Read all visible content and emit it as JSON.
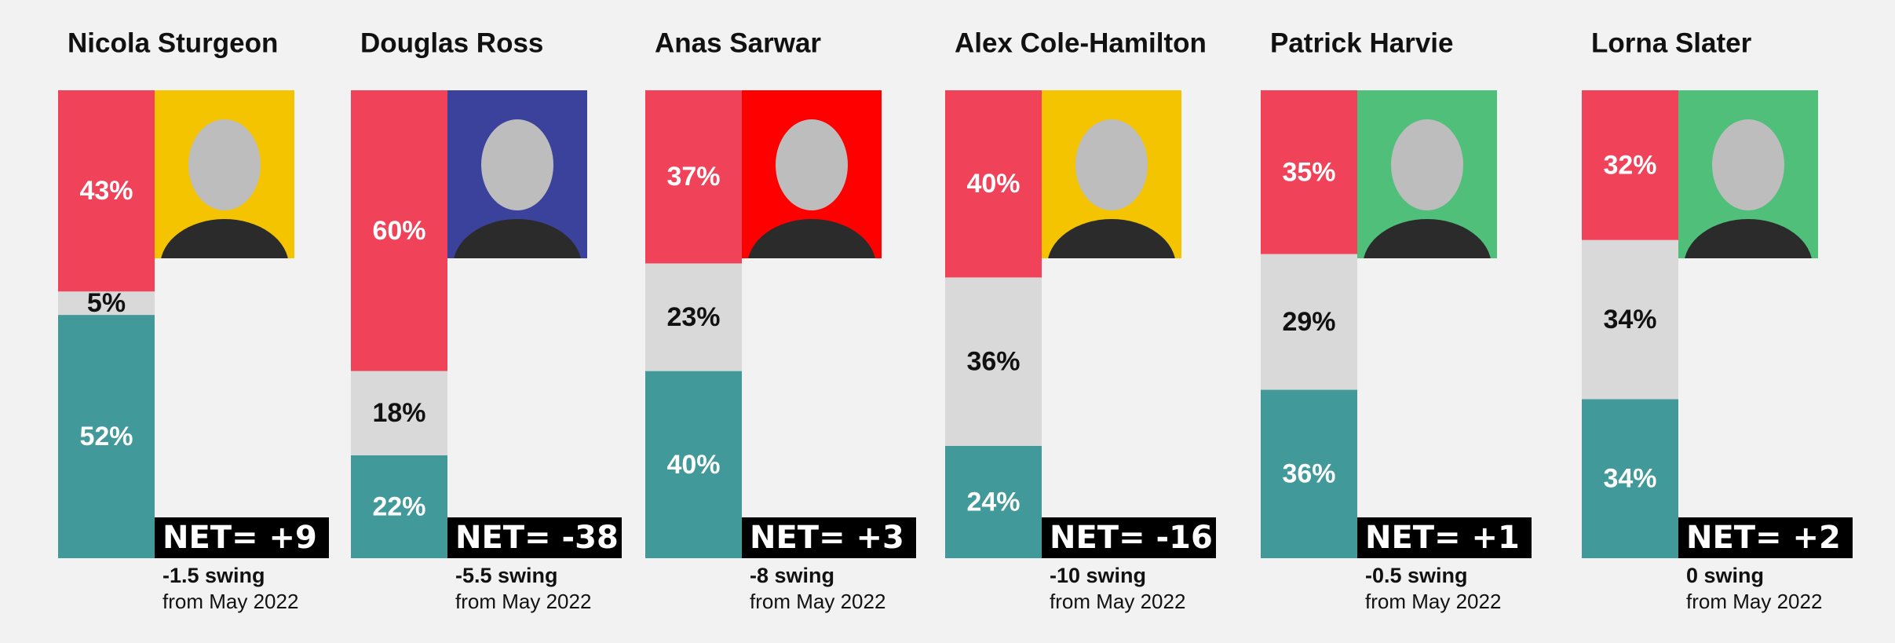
{
  "chart_data": [
    {
      "type": "bar",
      "stacked": true,
      "title": "Nicola Sturgeon",
      "categories": [
        null
      ],
      "series": [
        {
          "color": "#42999a",
          "values": [
            52
          ],
          "value_labels": [
            "52%"
          ]
        },
        {
          "color": "#d9d9d9",
          "values": [
            5
          ],
          "value_labels": [
            "5%"
          ]
        },
        {
          "color": "#f0435a",
          "values": [
            43
          ],
          "value_labels": [
            "43%"
          ]
        }
      ],
      "net": "NET= +9",
      "swing": "-1.5 swing",
      "note": "from May 2022"
    },
    {
      "type": "bar",
      "stacked": true,
      "title": "Douglas Ross",
      "categories": [
        null
      ],
      "series": [
        {
          "color": "#42999a",
          "values": [
            22
          ],
          "value_labels": [
            "22%"
          ]
        },
        {
          "color": "#d9d9d9",
          "values": [
            18
          ],
          "value_labels": [
            "18%"
          ]
        },
        {
          "color": "#f0435a",
          "values": [
            60
          ],
          "value_labels": [
            "60%"
          ]
        }
      ],
      "net": "NET= -38",
      "swing": "-5.5 swing",
      "note": "from May 2022"
    },
    {
      "type": "bar",
      "stacked": true,
      "title": "Anas Sarwar",
      "categories": [
        null
      ],
      "series": [
        {
          "color": "#42999a",
          "values": [
            40
          ],
          "value_labels": [
            "40%"
          ]
        },
        {
          "color": "#d9d9d9",
          "values": [
            23
          ],
          "value_labels": [
            "23%"
          ]
        },
        {
          "color": "#f0435a",
          "values": [
            37
          ],
          "value_labels": [
            "37%"
          ]
        }
      ],
      "net": "NET= +3",
      "swing": "-8 swing",
      "note": "from May 2022"
    },
    {
      "type": "bar",
      "stacked": true,
      "title": "Alex Cole-Hamilton",
      "categories": [
        null
      ],
      "series": [
        {
          "color": "#42999a",
          "values": [
            24
          ],
          "value_labels": [
            "24%"
          ]
        },
        {
          "color": "#d9d9d9",
          "values": [
            36
          ],
          "value_labels": [
            "36%"
          ]
        },
        {
          "color": "#f0435a",
          "values": [
            40
          ],
          "value_labels": [
            "40%"
          ]
        }
      ],
      "net": "NET= -16",
      "swing": "-10 swing",
      "note": "from May 2022"
    },
    {
      "type": "bar",
      "stacked": true,
      "title": "Patrick Harvie",
      "categories": [
        null
      ],
      "series": [
        {
          "color": "#42999a",
          "values": [
            36
          ],
          "value_labels": [
            "36%"
          ]
        },
        {
          "color": "#d9d9d9",
          "values": [
            29
          ],
          "value_labels": [
            "29%"
          ]
        },
        {
          "color": "#f0435a",
          "values": [
            35
          ],
          "value_labels": [
            "35%"
          ]
        }
      ],
      "net": "NET= +1",
      "swing": "-0.5 swing",
      "note": "from May 2022"
    },
    {
      "type": "bar",
      "stacked": true,
      "title": "Lorna Slater",
      "categories": [
        null
      ],
      "series": [
        {
          "color": "#42999a",
          "values": [
            34
          ],
          "value_labels": [
            "34%"
          ]
        },
        {
          "color": "#d9d9d9",
          "values": [
            34
          ],
          "value_labels": [
            "34%"
          ]
        },
        {
          "color": "#f0435a",
          "values": [
            32
          ],
          "value_labels": [
            "32%"
          ]
        }
      ],
      "net": "NET= +2",
      "swing": "0 swing",
      "note": "from May 2022"
    }
  ]
}
